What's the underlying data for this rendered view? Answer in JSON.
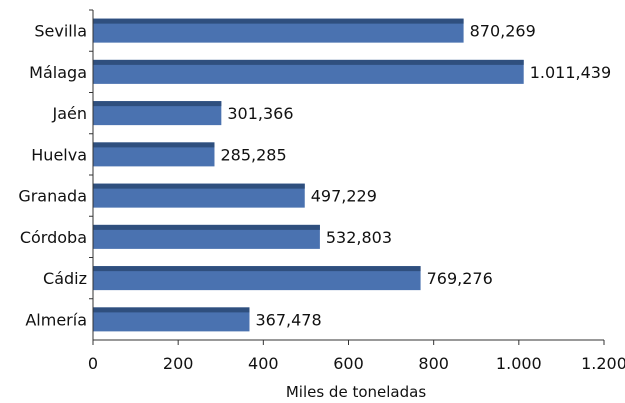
{
  "chart_data": {
    "type": "bar",
    "orientation": "horizontal",
    "categories": [
      "Sevilla",
      "Málaga",
      "Jaén",
      "Huelva",
      "Granada",
      "Córdoba",
      "Cádiz",
      "Almería"
    ],
    "values": [
      870.269,
      1011.439,
      301.366,
      285.285,
      497.229,
      532.803,
      769.276,
      367.478
    ],
    "value_labels": [
      "870,269",
      "1.011,439",
      "301,366",
      "285,285",
      "497,229",
      "532,803",
      "769,276",
      "367,478"
    ],
    "xlabel": "Miles de toneladas",
    "xlim": [
      0,
      1200
    ],
    "x_ticks": [
      0,
      200,
      400,
      600,
      800,
      1000,
      1200
    ],
    "x_tick_labels": [
      "0",
      "200",
      "400",
      "600",
      "800",
      "1.000",
      "1.200"
    ],
    "grid": false,
    "colors": {
      "bar": "#4A72B0",
      "bar_top": "#2F4F7E"
    }
  }
}
